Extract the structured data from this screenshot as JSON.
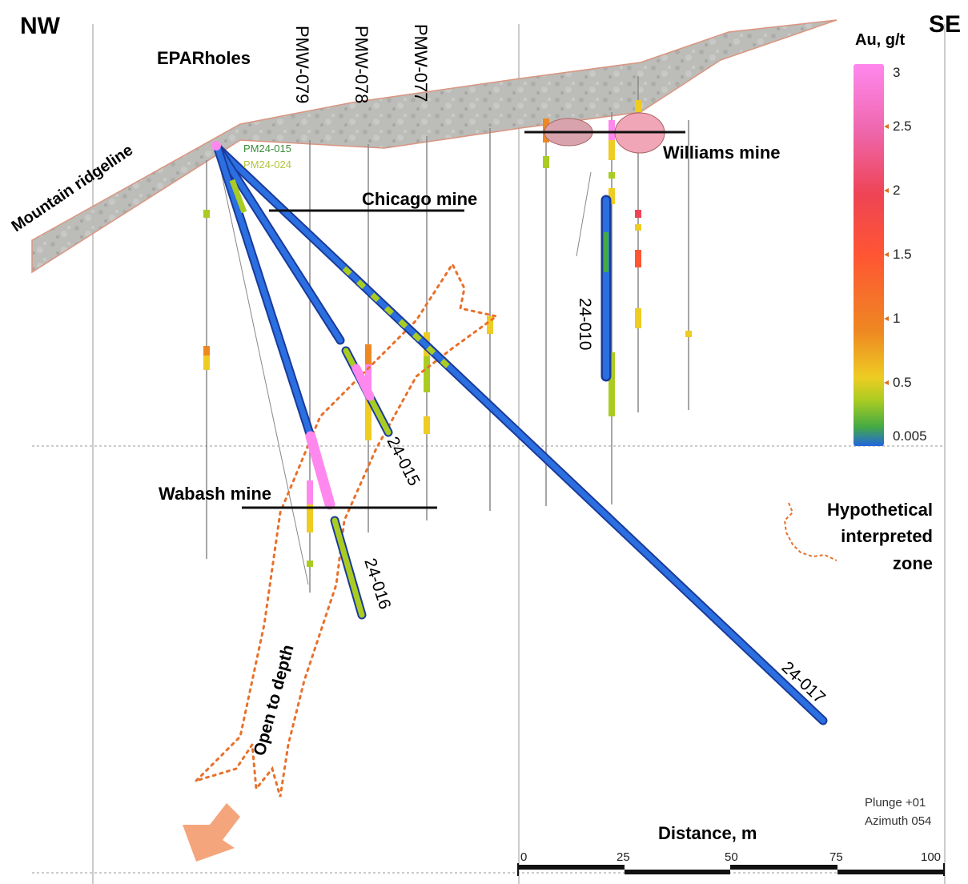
{
  "orientation": {
    "left": "NW",
    "right": "SE"
  },
  "group_label": "EPARholes",
  "labels": {
    "ridgeline": "Mountain ridgeline",
    "chicago": "Chicago mine",
    "williams": "Williams mine",
    "wabash": "Wabash mine",
    "open_depth": "Open to depth",
    "collar_1": "PM24-015",
    "collar_2": "PM24-024"
  },
  "drillholes": {
    "pmw079": "PMW-079",
    "pmw078": "PMW-078",
    "pmw077": "PMW-077",
    "h24_015": "24-015",
    "h24_016": "24-016",
    "h24_017": "24-017",
    "h24_010": "24-010"
  },
  "legend": {
    "title": "Au, g/t",
    "ticks": [
      "3",
      "2.5",
      "2",
      "1.5",
      "1",
      "0.5",
      "0.005"
    ],
    "colors": [
      "#ff88ee",
      "#ee66aa",
      "#ee4455",
      "#ff5533",
      "#ee8822",
      "#eecc22",
      "#aacc22",
      "#44aa44",
      "#2266dd"
    ]
  },
  "hypothetical": {
    "line1": "Hypothetical",
    "line2": "interpreted",
    "line3": "zone"
  },
  "view": {
    "plunge": "Plunge +01",
    "azimuth": "Azimuth 054"
  },
  "scale": {
    "title": "Distance, m",
    "ticks": [
      "0",
      "25",
      "50",
      "75",
      "100"
    ]
  }
}
